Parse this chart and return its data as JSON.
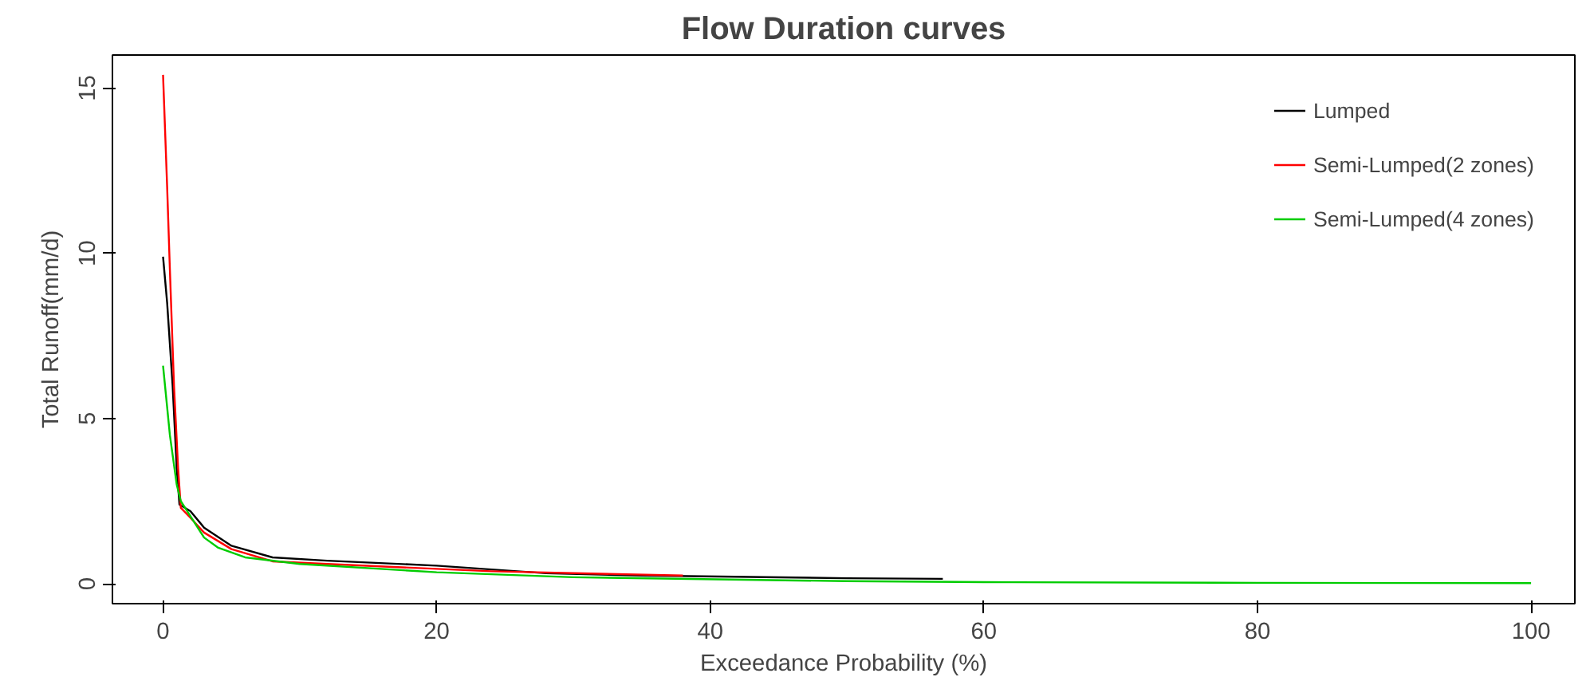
{
  "chart_data": {
    "type": "line",
    "title": "Flow Duration curves",
    "xlabel": "Exceedance Probability (%)",
    "ylabel": "Total Runoff(mm/d)",
    "xlim": [
      -3.7,
      103.2
    ],
    "ylim": [
      -0.6,
      16.0
    ],
    "xticks": [
      0,
      20,
      40,
      60,
      80,
      100
    ],
    "yticks": [
      0,
      5,
      10,
      15
    ],
    "grid": false,
    "legend": "top right",
    "line_style": "solid",
    "marker": "none",
    "series": [
      {
        "name": "Lumped",
        "color": "#000000",
        "x": [
          0,
          0.3,
          0.7,
          1,
          1.2,
          2,
          3,
          5,
          8,
          12,
          20,
          28,
          35,
          50,
          57
        ],
        "values": [
          9.9,
          8.5,
          6,
          3.5,
          2.4,
          2.2,
          1.7,
          1.15,
          0.8,
          0.7,
          0.55,
          0.32,
          0.25,
          0.17,
          0.15
        ]
      },
      {
        "name": "Semi-Lumped(2 zones)",
        "color": "#ff0000",
        "x": [
          0,
          0.3,
          0.5,
          0.8,
          1.1,
          1.3,
          2,
          3,
          5,
          8,
          12,
          24,
          38
        ],
        "values": [
          15.4,
          12,
          9.5,
          6,
          3.5,
          2.3,
          2.0,
          1.55,
          1.05,
          0.68,
          0.6,
          0.38,
          0.25
        ]
      },
      {
        "name": "Semi-Lumped(4 zones)",
        "color": "#00cc00",
        "x": [
          0,
          0.5,
          1,
          1.3,
          3,
          4,
          6,
          10,
          20,
          30,
          50,
          60,
          80,
          100
        ],
        "values": [
          6.6,
          4.5,
          3,
          2.5,
          1.4,
          1.1,
          0.8,
          0.6,
          0.35,
          0.2,
          0.08,
          0.05,
          0.03,
          0.02
        ]
      }
    ]
  }
}
